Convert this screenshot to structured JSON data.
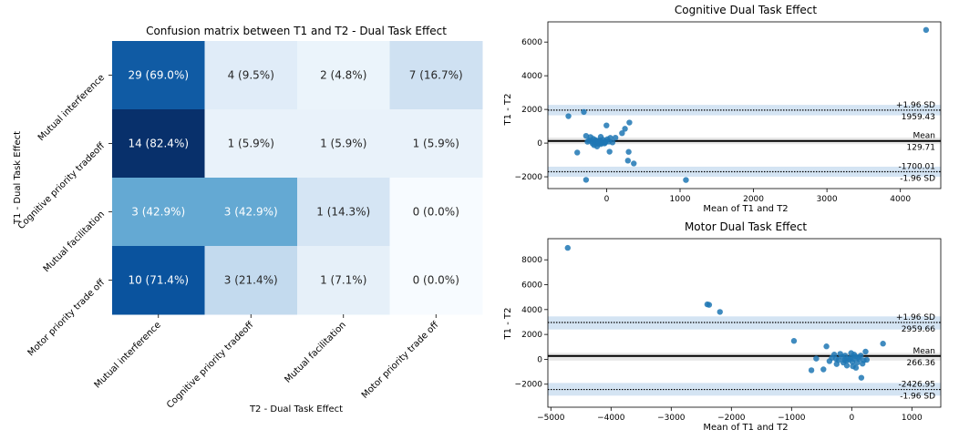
{
  "chart_data": [
    {
      "type": "heatmap",
      "title": "Confusion matrix between T1 and T2 - Dual Task Effect",
      "xlabel": "T2 - Dual Task Effect",
      "ylabel": "T1 - Dual Task Effect",
      "colormap": "Blues",
      "row_labels": [
        "Mutual interference",
        "Cognitive priority tradeoff",
        "Mutual facilitation",
        "Motor priority trade off"
      ],
      "col_labels": [
        "Mutual interference",
        "Cognitive priority tradeoff",
        "Mutual facilitation",
        "Motor priority trade off"
      ],
      "values": [
        [
          69.0,
          9.5,
          4.8,
          16.7
        ],
        [
          82.4,
          5.9,
          5.9,
          5.9
        ],
        [
          42.9,
          42.9,
          14.3,
          0.0
        ],
        [
          71.4,
          21.4,
          7.1,
          0.0
        ]
      ],
      "cell_labels": [
        [
          "29 (69.0%)",
          "4 (9.5%)",
          "2 (4.8%)",
          "7 (16.7%)"
        ],
        [
          "14 (82.4%)",
          "1 (5.9%)",
          "1 (5.9%)",
          "1 (5.9%)"
        ],
        [
          "3 (42.9%)",
          "3 (42.9%)",
          "1 (14.3%)",
          "0 (0.0%)"
        ],
        [
          "10 (71.4%)",
          "3 (21.4%)",
          "1 (7.1%)",
          "0 (0.0%)"
        ]
      ]
    },
    {
      "type": "scatter",
      "title": "Cognitive Dual Task Effect",
      "xlabel": "Mean of T1 and T2",
      "ylabel": "T1 - T2",
      "xlim": [
        -800,
        4550
      ],
      "ylim": [
        -2700,
        7200
      ],
      "xticks": [
        0,
        1000,
        2000,
        3000,
        4000
      ],
      "yticks": [
        -2000,
        0,
        2000,
        4000,
        6000
      ],
      "grid": false,
      "color": "#1f77b4",
      "lines": [
        {
          "label": "+1.96 SD",
          "value_label": "1959.43",
          "value": 1959.43,
          "style": "dotted",
          "band": [
            1650,
            2270
          ]
        },
        {
          "label": "Mean",
          "value_label": "129.71",
          "value": 129.71,
          "style": "solid",
          "band": [
            -60,
            330
          ]
        },
        {
          "label": "-1.96 SD",
          "value_label": "-1700.01",
          "value": -1700.01,
          "style": "dotted",
          "band": [
            -2000,
            -1400
          ]
        }
      ],
      "points": [
        [
          4350,
          6720
        ],
        [
          -520,
          1600
        ],
        [
          -310,
          1850
        ],
        [
          -2,
          1050
        ],
        [
          310,
          1220
        ],
        [
          250,
          850
        ],
        [
          210,
          590
        ],
        [
          -80,
          370
        ],
        [
          -280,
          430
        ],
        [
          -220,
          360
        ],
        [
          -180,
          250
        ],
        [
          -150,
          180
        ],
        [
          -120,
          120
        ],
        [
          -100,
          80
        ],
        [
          -70,
          40
        ],
        [
          -40,
          60
        ],
        [
          -20,
          20
        ],
        [
          -240,
          150
        ],
        [
          -200,
          100
        ],
        [
          -160,
          50
        ],
        [
          -140,
          0
        ],
        [
          -110,
          -40
        ],
        [
          -80,
          -60
        ],
        [
          -60,
          10
        ],
        [
          -30,
          -20
        ],
        [
          10,
          230
        ],
        [
          50,
          310
        ],
        [
          120,
          320
        ],
        [
          -260,
          80
        ],
        [
          -190,
          -30
        ],
        [
          -90,
          160
        ],
        [
          -50,
          200
        ],
        [
          -130,
          -200
        ],
        [
          -170,
          -120
        ],
        [
          -10,
          110
        ],
        [
          30,
          90
        ],
        [
          80,
          40
        ],
        [
          -400,
          -560
        ],
        [
          40,
          -510
        ],
        [
          300,
          -520
        ],
        [
          290,
          -1040
        ],
        [
          370,
          -1210
        ],
        [
          -280,
          -2180
        ],
        [
          1080,
          -2190
        ]
      ]
    },
    {
      "type": "scatter",
      "title": "Motor Dual Task Effect",
      "xlabel": "Mean of T1 and T2",
      "ylabel": "T1 - T2",
      "xlim": [
        -5050,
        1480
      ],
      "ylim": [
        -3850,
        9700
      ],
      "xticks": [
        -5000,
        -4000,
        -3000,
        -2000,
        -1000,
        0,
        1000
      ],
      "yticks": [
        -2000,
        0,
        2000,
        4000,
        6000,
        8000
      ],
      "grid": false,
      "color": "#1f77b4",
      "lines": [
        {
          "label": "+1.96 SD",
          "value_label": "2959.66",
          "value": 2959.66,
          "style": "dotted",
          "band": [
            2400,
            3450
          ]
        },
        {
          "label": "Mean",
          "value_label": "266.36",
          "value": 266.36,
          "style": "solid",
          "band": [
            -100,
            520
          ]
        },
        {
          "label": "-1.96 SD",
          "value_label": "-2426.95",
          "value": -2426.95,
          "style": "dotted",
          "band": [
            -2920,
            -1900
          ]
        }
      ],
      "points": [
        [
          -4720,
          8960
        ],
        [
          -2400,
          4420
        ],
        [
          -2370,
          4380
        ],
        [
          -2190,
          3810
        ],
        [
          -960,
          1480
        ],
        [
          520,
          1260
        ],
        [
          -420,
          1040
        ],
        [
          -590,
          60
        ],
        [
          -670,
          -880
        ],
        [
          -470,
          -810
        ],
        [
          -370,
          -150
        ],
        [
          -250,
          -380
        ],
        [
          -190,
          440
        ],
        [
          -120,
          -80
        ],
        [
          -90,
          -110
        ],
        [
          -70,
          60
        ],
        [
          -40,
          -30
        ],
        [
          -20,
          120
        ],
        [
          10,
          -200
        ],
        [
          30,
          40
        ],
        [
          60,
          230
        ],
        [
          90,
          -270
        ],
        [
          120,
          10
        ],
        [
          150,
          300
        ],
        [
          180,
          -350
        ],
        [
          230,
          620
        ],
        [
          250,
          -40
        ],
        [
          -330,
          120
        ],
        [
          -290,
          380
        ],
        [
          -160,
          200
        ],
        [
          -220,
          -60
        ],
        [
          -110,
          300
        ],
        [
          40,
          380
        ],
        [
          -10,
          500
        ],
        [
          20,
          -560
        ],
        [
          70,
          -680
        ],
        [
          160,
          -1480
        ],
        [
          -80,
          -500
        ],
        [
          -140,
          -260
        ],
        [
          200,
          -80
        ],
        [
          -260,
          30
        ],
        [
          110,
          160
        ]
      ]
    }
  ]
}
